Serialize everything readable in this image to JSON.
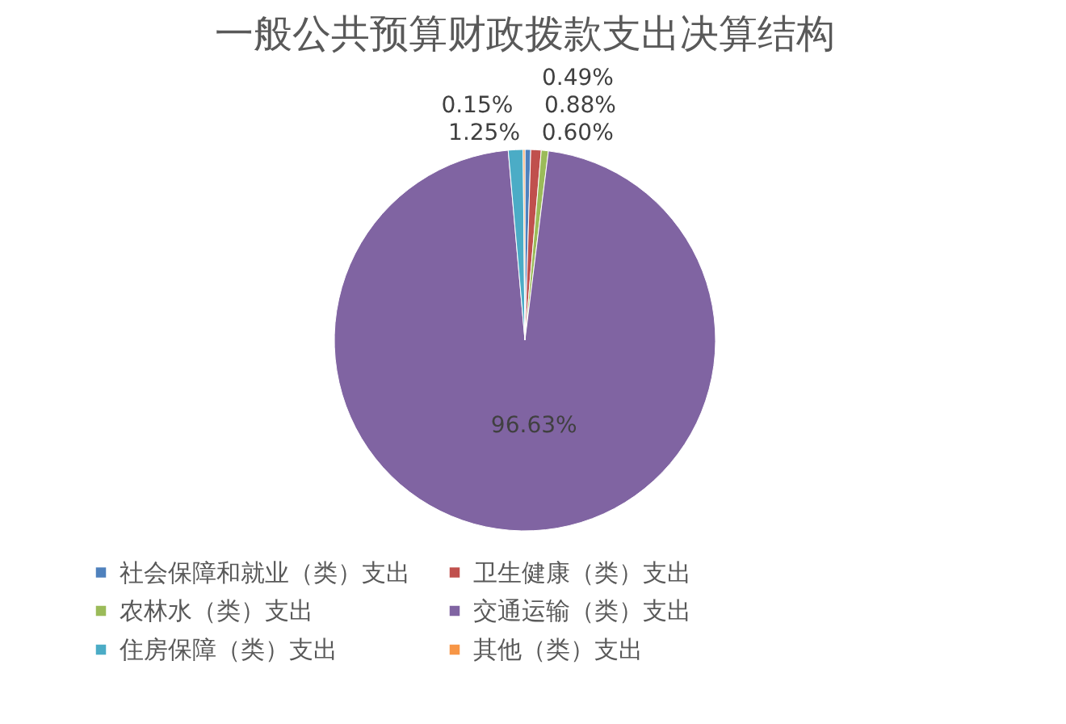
{
  "chart_data": {
    "type": "pie",
    "title": "一般公共预算财政拨款支出决算结构",
    "categories": [
      "社会保障和就业（类）支出",
      "卫生健康（类）支出",
      "农林水（类）支出",
      "交通运输（类）支出",
      "住房保障（类）支出",
      "其他（类）支出"
    ],
    "values": [
      0.49,
      0.88,
      0.6,
      96.63,
      1.25,
      0.15
    ],
    "value_labels": [
      "0.49%",
      "0.88%",
      "0.60%",
      "96.63%",
      "1.25%",
      "0.15%"
    ],
    "colors": [
      "#4f81bd",
      "#c0504d",
      "#9bbb59",
      "#8064a2",
      "#4bacc6",
      "#f79646"
    ],
    "legend": "bottom"
  }
}
